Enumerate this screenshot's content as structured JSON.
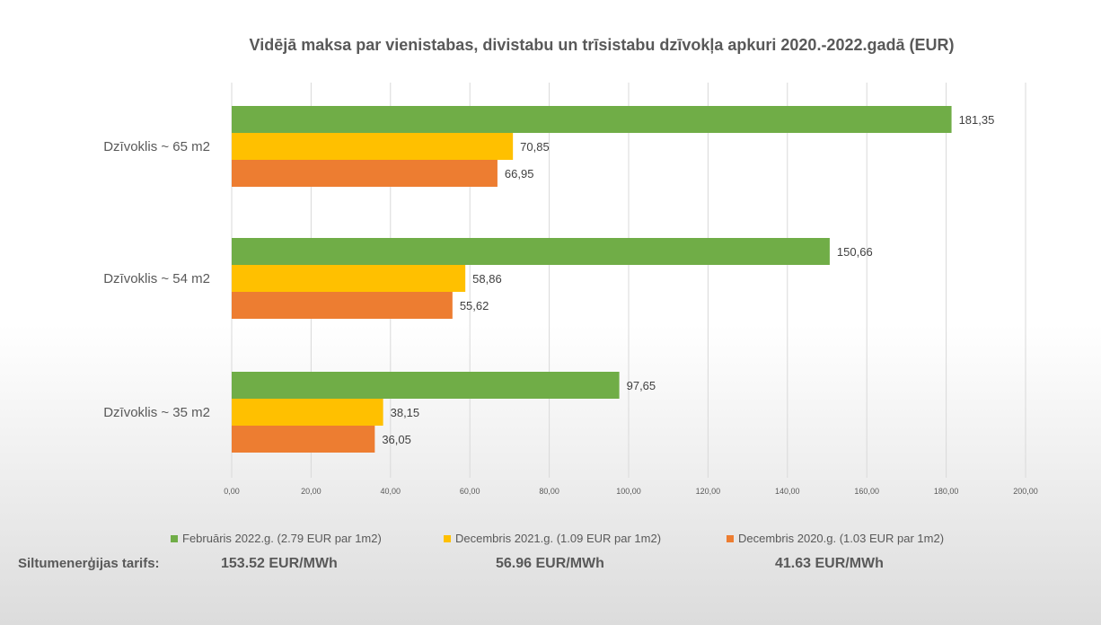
{
  "chart_data": {
    "type": "bar",
    "orientation": "horizontal",
    "title": "Vidējā maksa par vienistabas, divistabu un trīsistabu dzīvokļa apkuri 2020.-2022.gadā (EUR)",
    "xlabel": "",
    "ylabel": "",
    "xlim": [
      0,
      200
    ],
    "xticks": [
      0,
      20,
      40,
      60,
      80,
      100,
      120,
      140,
      160,
      180,
      200
    ],
    "xtick_labels": [
      "0,00",
      "20,00",
      "40,00",
      "60,00",
      "80,00",
      "100,00",
      "120,00",
      "140,00",
      "160,00",
      "180,00",
      "200,00"
    ],
    "grid": "vertical",
    "legend_position": "bottom",
    "categories": [
      "Dzīvoklis ~ 65 m2",
      "Dzīvoklis ~ 54 m2",
      "Dzīvoklis ~ 35 m2"
    ],
    "series": [
      {
        "name": "Februāris 2022.g. (2.79 EUR par 1m2)",
        "color": "#70AD47",
        "values": [
          181.35,
          150.66,
          97.65
        ],
        "labels": [
          "181,35",
          "150,66",
          "97,65"
        ]
      },
      {
        "name": "Decembris 2021.g.  (1.09 EUR par 1m2)",
        "color": "#FFC000",
        "values": [
          70.85,
          58.86,
          38.15
        ],
        "labels": [
          "70,85",
          "58,86",
          "38,15"
        ]
      },
      {
        "name": "Decembris 2020.g. (1.03 EUR par 1m2)",
        "color": "#ED7D31",
        "values": [
          66.95,
          55.62,
          36.05
        ],
        "labels": [
          "66,95",
          "55,62",
          "36,05"
        ]
      }
    ]
  },
  "tariff": {
    "label": "Siltumenerģijas tarifs:",
    "values": [
      "153.52 EUR/MWh",
      "56.96 EUR/MWh",
      "41.63 EUR/MWh"
    ]
  }
}
